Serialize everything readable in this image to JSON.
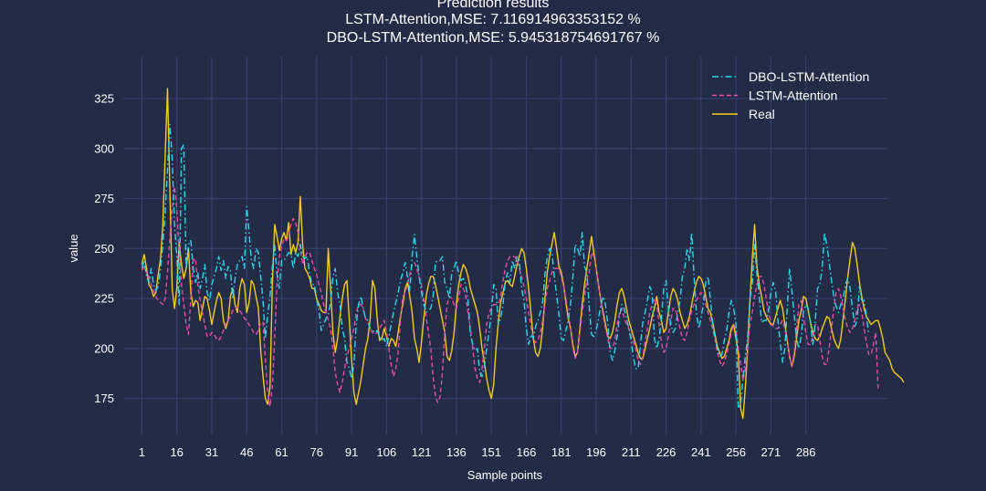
{
  "chart_data": {
    "type": "line",
    "title": "Prediction results",
    "subtitle_lines": [
      "LSTM-Attention,MSE: 7.116914963353152 %",
      "DBO-LSTM-Attention,MSE: 5.945318754691767 %"
    ],
    "xlabel": "Sample points",
    "ylabel": "value",
    "xlim": [
      -7,
      321
    ],
    "ylim": [
      157,
      346
    ],
    "x_ticks": [
      1,
      16,
      31,
      46,
      61,
      76,
      91,
      106,
      121,
      136,
      151,
      166,
      181,
      196,
      211,
      226,
      241,
      256,
      271,
      286
    ],
    "y_ticks": [
      175,
      200,
      225,
      250,
      275,
      300,
      325
    ],
    "grid": true,
    "legend_position": "top-right",
    "colors": {
      "background": "#232b47",
      "grid": "#34406b",
      "text": "#ffffff",
      "dbo": "#29d8e8",
      "lstm": "#e84aa6",
      "real": "#f5cc17"
    },
    "series": [
      {
        "name": "DBO-LSTM-Attention",
        "style": "dashdot",
        "color": "#29d8e8",
        "x_start": 1,
        "values": [
          240,
          244,
          236,
          233,
          240,
          232,
          229,
          231,
          240,
          252,
          268,
          290,
          312,
          295,
          262,
          246,
          222,
          300,
          302,
          240,
          252,
          254,
          240,
          233,
          238,
          230,
          235,
          242,
          228,
          224,
          232,
          236,
          240,
          246,
          239,
          244,
          235,
          241,
          239,
          225,
          235,
          242,
          244,
          246,
          240,
          271,
          258,
          244,
          240,
          250,
          248,
          236,
          224,
          205,
          217,
          226,
          241,
          252,
          237,
          230,
          244,
          244,
          246,
          248,
          247,
          240,
          248,
          246,
          252,
          246,
          245,
          246,
          237,
          232,
          232,
          225,
          219,
          209,
          212,
          215,
          217,
          223,
          236,
          240,
          228,
          222,
          210,
          205,
          193,
          190,
          185,
          192,
          212,
          222,
          226,
          220,
          215,
          214,
          210,
          209,
          208,
          209,
          206,
          204,
          205,
          201,
          206,
          212,
          218,
          223,
          228,
          234,
          238,
          243,
          236,
          229,
          246,
          257,
          246,
          236,
          228,
          222,
          218,
          219,
          220,
          226,
          243,
          244,
          244,
          246,
          233,
          230,
          225,
          238,
          240,
          244,
          237,
          234,
          235,
          232,
          224,
          207,
          202,
          199,
          200,
          188,
          186,
          191,
          200,
          208,
          218,
          232,
          230,
          212,
          215,
          222,
          234,
          238,
          233,
          244,
          240,
          246,
          244,
          230,
          224,
          210,
          202,
          207,
          205,
          211,
          214,
          218,
          223,
          237,
          246,
          250,
          248,
          236,
          227,
          217,
          205,
          204,
          209,
          214,
          222,
          236,
          252,
          250,
          246,
          258,
          241,
          238,
          221,
          207,
          206,
          209,
          215,
          222,
          226,
          222,
          212,
          198,
          194,
          199,
          206,
          216,
          222,
          220,
          215,
          210,
          204,
          195,
          190,
          190,
          202,
          213,
          218,
          224,
          231,
          228,
          205,
          200,
          205,
          215,
          230,
          234,
          220,
          212,
          208,
          210,
          218,
          224,
          236,
          240,
          250,
          244,
          258,
          236,
          218,
          210,
          215,
          222,
          233,
          236,
          225,
          212,
          205,
          200,
          196,
          197,
          204,
          209,
          218,
          224,
          220,
          212,
          170,
          172,
          185,
          196,
          205,
          225,
          232,
          252,
          237,
          226,
          213,
          214,
          214,
          219,
          228,
          233,
          229,
          214,
          203,
          193,
          200,
          220,
          240,
          229,
          217,
          205,
          200,
          206,
          219,
          222,
          220,
          213,
          202,
          213,
          230,
          232,
          240,
          258,
          252,
          243,
          234,
          226,
          221,
          218,
          222,
          225,
          232,
          235,
          230,
          220,
          211,
          214,
          231,
          224,
          224,
          216
        ],
        "end_values": [
          207
        ]
      },
      {
        "name": "LSTM-Attention",
        "style": "dashed",
        "color": "#e84aa6",
        "x_start": 1,
        "values": [
          239,
          241,
          238,
          236,
          232,
          229,
          226,
          224,
          223,
          222,
          225,
          238,
          255,
          270,
          281,
          270,
          248,
          232,
          222,
          212,
          207,
          225,
          244,
          245,
          232,
          224,
          218,
          212,
          206,
          206,
          208,
          207,
          205,
          204,
          206,
          209,
          212,
          214,
          216,
          219,
          220,
          221,
          219,
          217,
          215,
          214,
          212,
          210,
          208,
          207,
          209,
          213,
          213,
          195,
          178,
          171,
          181,
          205,
          232,
          246,
          251,
          255,
          254,
          256,
          262,
          265,
          263,
          258,
          250,
          242,
          246,
          248,
          248,
          244,
          240,
          237,
          232,
          228,
          222,
          218,
          214,
          210,
          200,
          188,
          182,
          178,
          183,
          190,
          196,
          200,
          205,
          210,
          218,
          222,
          222,
          220,
          215,
          213,
          210,
          208,
          207,
          208,
          210,
          212,
          214,
          208,
          200,
          192,
          186,
          190,
          198,
          214,
          226,
          228,
          232,
          237,
          242,
          243,
          240,
          236,
          232,
          224,
          216,
          208,
          200,
          186,
          176,
          173,
          176,
          188,
          208,
          222,
          226,
          225,
          222,
          220,
          225,
          232,
          230,
          226,
          218,
          210,
          200,
          190,
          185,
          183,
          190,
          200,
          212,
          218,
          220,
          222,
          222,
          222,
          226,
          234,
          240,
          244,
          246,
          246,
          246,
          244,
          240,
          236,
          231,
          225,
          218,
          211,
          205,
          203,
          204,
          208,
          214,
          222,
          230,
          234,
          238,
          240,
          240,
          240,
          236,
          231,
          225,
          218,
          210,
          200,
          195,
          198,
          208,
          218,
          226,
          234,
          238,
          248,
          246,
          240,
          232,
          224,
          216,
          210,
          205,
          200,
          200,
          204,
          212,
          218,
          220,
          215,
          212,
          210,
          206,
          203,
          200,
          194,
          192,
          196,
          203,
          210,
          218,
          222,
          225,
          222,
          212,
          203,
          198,
          200,
          206,
          214,
          220,
          220,
          215,
          210,
          205,
          204,
          208,
          214,
          219,
          222,
          224,
          226,
          228,
          226,
          222,
          218,
          214,
          210,
          205,
          198,
          194,
          191,
          193,
          197,
          202,
          208,
          212,
          210,
          200,
          193,
          184,
          190,
          200,
          212,
          218,
          226,
          232,
          236,
          236,
          232,
          225,
          218,
          213,
          211,
          210,
          210,
          212,
          214,
          210,
          203,
          196,
          191,
          198,
          210,
          222,
          224,
          215,
          208,
          202,
          202,
          206,
          212,
          212,
          204,
          196,
          192,
          192,
          200,
          210,
          220,
          228,
          230,
          226,
          220,
          214,
          210,
          208,
          210,
          214,
          220,
          222,
          218,
          210,
          203,
          197,
          197,
          202,
          208
        ],
        "end_values": [
          180
        ]
      },
      {
        "name": "Real",
        "style": "solid",
        "color": "#f5cc17",
        "x_start": 1,
        "values": [
          242,
          247,
          240,
          232,
          230,
          226,
          228,
          237,
          245,
          262,
          297,
          330,
          280,
          230,
          220,
          230,
          253,
          242,
          235,
          240,
          250,
          228,
          221,
          224,
          223,
          214,
          220,
          226,
          225,
          219,
          212,
          218,
          224,
          228,
          225,
          214,
          210,
          214,
          226,
          230,
          222,
          218,
          230,
          235,
          232,
          218,
          223,
          234,
          232,
          226,
          220,
          199,
          186,
          175,
          172,
          181,
          232,
          262,
          256,
          249,
          255,
          258,
          254,
          263,
          247,
          252,
          248,
          253,
          276,
          252,
          240,
          238,
          235,
          230,
          230,
          225,
          222,
          219,
          218,
          218,
          250,
          230,
          208,
          198,
          205,
          216,
          225,
          232,
          234,
          215,
          195,
          178,
          172,
          178,
          184,
          192,
          200,
          205,
          215,
          234,
          230,
          215,
          204,
          205,
          210,
          206,
          201,
          205,
          204,
          201,
          208,
          216,
          222,
          230,
          233,
          226,
          218,
          205,
          200,
          193,
          203,
          215,
          226,
          232,
          236,
          236,
          232,
          226,
          220,
          214,
          208,
          196,
          194,
          199,
          208,
          222,
          232,
          238,
          242,
          240,
          236,
          230,
          226,
          222,
          218,
          210,
          200,
          193,
          185,
          179,
          175,
          182,
          200,
          213,
          223,
          228,
          233,
          234,
          232,
          231,
          236,
          242,
          246,
          250,
          248,
          240,
          230,
          218,
          205,
          198,
          196,
          200,
          210,
          225,
          238,
          246,
          252,
          258,
          250,
          241,
          238,
          232,
          223,
          215,
          210,
          202,
          196,
          198,
          210,
          222,
          232,
          240,
          248,
          256,
          248,
          240,
          232,
          224,
          218,
          212,
          206,
          205,
          208,
          214,
          222,
          228,
          230,
          226,
          220,
          214,
          210,
          206,
          202,
          198,
          195,
          195,
          200,
          205,
          210,
          216,
          220,
          226,
          218,
          214,
          208,
          210,
          218,
          226,
          230,
          228,
          224,
          218,
          214,
          210,
          212,
          216,
          222,
          228,
          233,
          236,
          235,
          232,
          226,
          220,
          218,
          213,
          207,
          201,
          198,
          195,
          196,
          200,
          204,
          210,
          212,
          205,
          198,
          170,
          165,
          180,
          200,
          224,
          245,
          262,
          241,
          232,
          226,
          219,
          216,
          214,
          212,
          212,
          216,
          220,
          224,
          220,
          212,
          204,
          196,
          191,
          196,
          205,
          214,
          219,
          226,
          225,
          219,
          213,
          208,
          205,
          204,
          206,
          210,
          213,
          216,
          215,
          210,
          205,
          202,
          200,
          205,
          215,
          225,
          236,
          245,
          253,
          250,
          242,
          233,
          226,
          220,
          216,
          214,
          212,
          213,
          214,
          214,
          210,
          205,
          198,
          196,
          194,
          190,
          188,
          187,
          186,
          185
        ],
        "end_values": [
          183
        ]
      }
    ]
  }
}
